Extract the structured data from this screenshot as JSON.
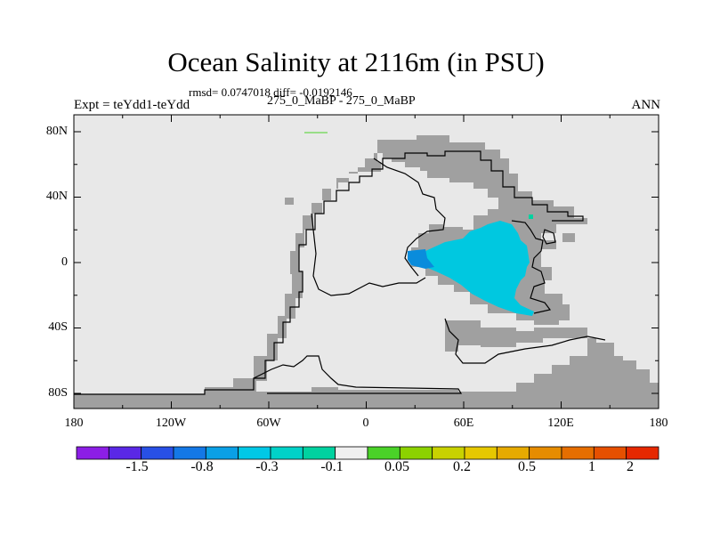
{
  "title": "Ocean Salinity at 2116m (in PSU)",
  "stats_line": "rmsd= 0.0747018 diff= -0.0192146",
  "experiment_label": "Expt = teYdd1-teYdd",
  "comparison_label": "275_0_MaBP - 275_0_MaBP",
  "season_label": "ANN",
  "map": {
    "lon_ticks": [
      "180",
      "120W",
      "60W",
      "0",
      "60E",
      "120E",
      "180"
    ],
    "lat_ticks": [
      "80N",
      "40N",
      "0",
      "40S",
      "80S"
    ],
    "colors": {
      "ocean_background": "#e8e8e8",
      "land": "#a0a0a0",
      "coastline": "#000000",
      "anomaly_light_cyan": "#00c8e0",
      "anomaly_blue": "#0a8cdc"
    }
  },
  "colorbar": {
    "labels": [
      "-1.5",
      "-0.8",
      "-0.3",
      "-0.1",
      "0.05",
      "0.2",
      "0.5",
      "1",
      "2"
    ],
    "colors": [
      "#8c1ee6",
      "#5a28e6",
      "#2850e6",
      "#1478e6",
      "#0aa0e6",
      "#00c8e6",
      "#00d2c8",
      "#00d2a0",
      "#f0f0f0",
      "#4ad228",
      "#8cd200",
      "#c8d200",
      "#e6c800",
      "#e6aa00",
      "#e68c00",
      "#e66e00",
      "#e65000",
      "#e62800"
    ]
  }
}
